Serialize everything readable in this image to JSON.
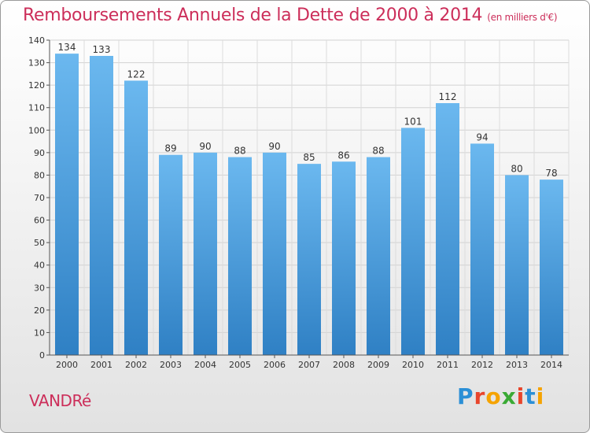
{
  "chart_data": {
    "type": "bar",
    "title": "Remboursements Annuels de la Dette de 2000 à 2014",
    "subtitle": "(en milliers d'€)",
    "categories": [
      "2000",
      "2001",
      "2002",
      "2003",
      "2004",
      "2005",
      "2006",
      "2007",
      "2008",
      "2009",
      "2010",
      "2011",
      "2012",
      "2013",
      "2014"
    ],
    "values": [
      134,
      133,
      122,
      89,
      90,
      88,
      90,
      85,
      86,
      88,
      101,
      112,
      94,
      80,
      78
    ],
    "ylim": [
      0,
      140
    ],
    "yticks": [
      0,
      10,
      20,
      30,
      40,
      50,
      60,
      70,
      80,
      90,
      100,
      110,
      120,
      130,
      140
    ],
    "grid": true,
    "xlabel": "",
    "ylabel": ""
  },
  "commune": "VANDRé",
  "logo": {
    "text": "Proxiti",
    "colors": [
      "#2b8fd6",
      "#e8452c",
      "#f5a300",
      "#3aaa35",
      "#e8452c",
      "#2b8fd6",
      "#f5a300"
    ]
  },
  "colors": {
    "title": "#cc2e5a",
    "bar_top": "#6bb8ef",
    "bar_bottom": "#2f80c4"
  }
}
